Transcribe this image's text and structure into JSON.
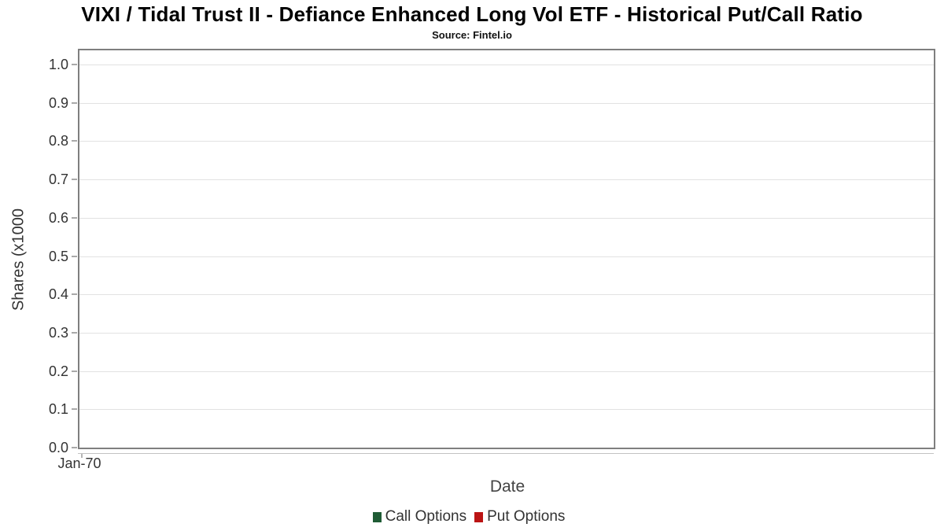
{
  "header": {
    "title": "VIXI / Tidal Trust II - Defiance Enhanced Long Vol ETF - Historical Put/Call Ratio",
    "subtitle": "Source: Fintel.io"
  },
  "chart_data": {
    "type": "line",
    "title": "VIXI / Tidal Trust II - Defiance Enhanced Long Vol ETF - Historical Put/Call Ratio",
    "subtitle": "Source: Fintel.io",
    "xlabel": "Date",
    "ylabel": "Shares (x1000",
    "ylim": [
      0.0,
      1.0
    ],
    "ytick_labels": [
      "0.0",
      "0.1",
      "0.2",
      "0.3",
      "0.4",
      "0.5",
      "0.6",
      "0.7",
      "0.8",
      "0.9",
      "1.0"
    ],
    "xticks": [
      "Jan-70"
    ],
    "grid": "horizontal",
    "legend_position": "bottom",
    "series": [
      {
        "name": "Call Options",
        "color": "#1f5c35",
        "x": [],
        "values": []
      },
      {
        "name": "Put Options",
        "color": "#bb1414",
        "x": [],
        "values": []
      }
    ],
    "plot_note": "chart area is empty - no data points plotted"
  },
  "colors": {
    "plot_border": "#7f7f7f",
    "gridline": "#e2e2e2",
    "call_options": "#1f5c35",
    "put_options": "#bb1414"
  }
}
